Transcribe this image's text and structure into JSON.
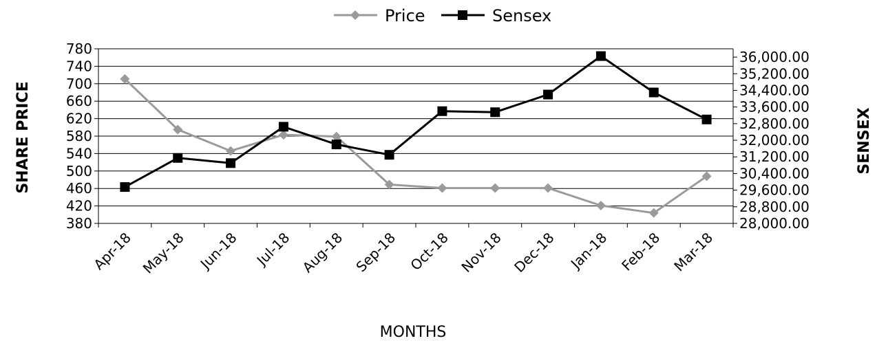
{
  "chart_data": {
    "type": "line",
    "categories": [
      "Apr-18",
      "May-18",
      "Jun-18",
      "Jul-18",
      "Aug-18",
      "Sep-18",
      "Oct-18",
      "Nov-18",
      "Dec-18",
      "Jan-18",
      "Feb-18",
      "Mar-18"
    ],
    "series": [
      {
        "name": "Price",
        "axis": "left",
        "color": "#9a9a9a",
        "marker": "diamond",
        "values": [
          711,
          595,
          546,
          583,
          579,
          469,
          461,
          461,
          461,
          421,
          404,
          488
        ]
      },
      {
        "name": "Sensex",
        "axis": "right",
        "color": "#000000",
        "marker": "square",
        "values": [
          29750,
          31150,
          30900,
          32650,
          31800,
          31300,
          33400,
          33350,
          34200,
          36050,
          34300,
          33000
        ]
      }
    ],
    "xlabel": "MONTHS",
    "ylabel_left": "SHARE PRICE",
    "ylabel_right": "SENSEX",
    "ylim_left": [
      380,
      780
    ],
    "yticks_left": [
      "380",
      "420",
      "460",
      "500",
      "540",
      "580",
      "620",
      "660",
      "700",
      "740",
      "780"
    ],
    "ylim_right": [
      28000,
      36400
    ],
    "yticks_right": [
      "28,000.00",
      "28,800.00",
      "29,600.00",
      "30,400.00",
      "31,200.00",
      "32,000.00",
      "32,800.00",
      "33,600.00",
      "34,400.00",
      "35,200.00",
      "36,000.00"
    ],
    "grid": true,
    "legend": "top-center"
  }
}
